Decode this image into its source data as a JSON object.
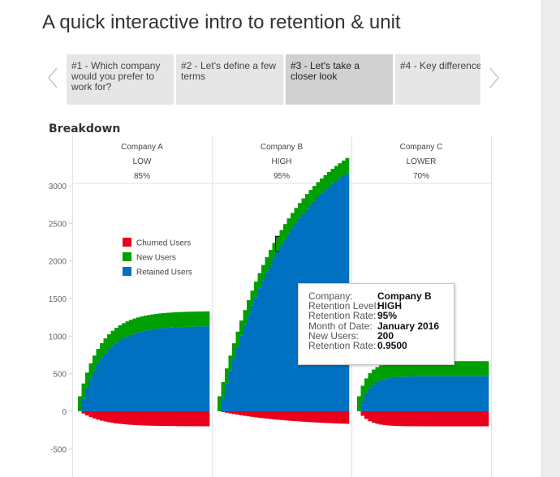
{
  "page": {
    "title": "A quick interactive intro to retention & unit"
  },
  "tabs": [
    {
      "label": "#1 - Which company would you prefer to work for?",
      "active": false
    },
    {
      "label": "#2 - Let's define a few terms",
      "active": false
    },
    {
      "label": "#3 - Let's take a closer look",
      "active": true
    },
    {
      "label": "#4 - Key difference",
      "active": false
    }
  ],
  "section": {
    "title": "Breakdown"
  },
  "colors": {
    "churned": "#e8001c",
    "new": "#00a000",
    "retained": "#0070c0",
    "highlight_stroke": "#111111"
  },
  "tooltip": {
    "rows": [
      {
        "label": "Company:",
        "value": "Company B"
      },
      {
        "label": "Retention Level:",
        "value": "HIGH"
      },
      {
        "label": "Retention Rate:",
        "value": "95%"
      },
      {
        "label": "Month of Date:",
        "value": "January 2016"
      },
      {
        "label": "New Users:",
        "value": "200"
      },
      {
        "label": "Retention Rate:",
        "value": "0.9500"
      }
    ]
  },
  "chart_data": {
    "type": "area",
    "stacked": true,
    "ylim": [
      -650,
      3000
    ],
    "yticks": [
      "3000",
      "2500",
      "2000",
      "1500",
      "1000",
      "500",
      "0",
      "-500"
    ],
    "ytick_values": [
      3000,
      2500,
      2000,
      1500,
      1000,
      500,
      0,
      -500
    ],
    "grid": false,
    "legend_position": "inside panel 1, upper middle",
    "legend": [
      "Churned Users",
      "New Users",
      "Retained Users"
    ],
    "months_per_panel": 36,
    "new_users_per_month": 200,
    "panels": [
      {
        "company": "Company A",
        "level": "LOW",
        "rate_label": "85%",
        "retention_rate": 0.85
      },
      {
        "company": "Company B",
        "level": "HIGH",
        "rate_label": "95%",
        "retention_rate": 0.95
      },
      {
        "company": "Company C",
        "level": "LOWER",
        "rate_label": "70%",
        "retention_rate": 0.7
      }
    ],
    "highlight": {
      "company": "Company B",
      "month_index": 16,
      "month": "January 2016",
      "new_users": 200
    }
  }
}
